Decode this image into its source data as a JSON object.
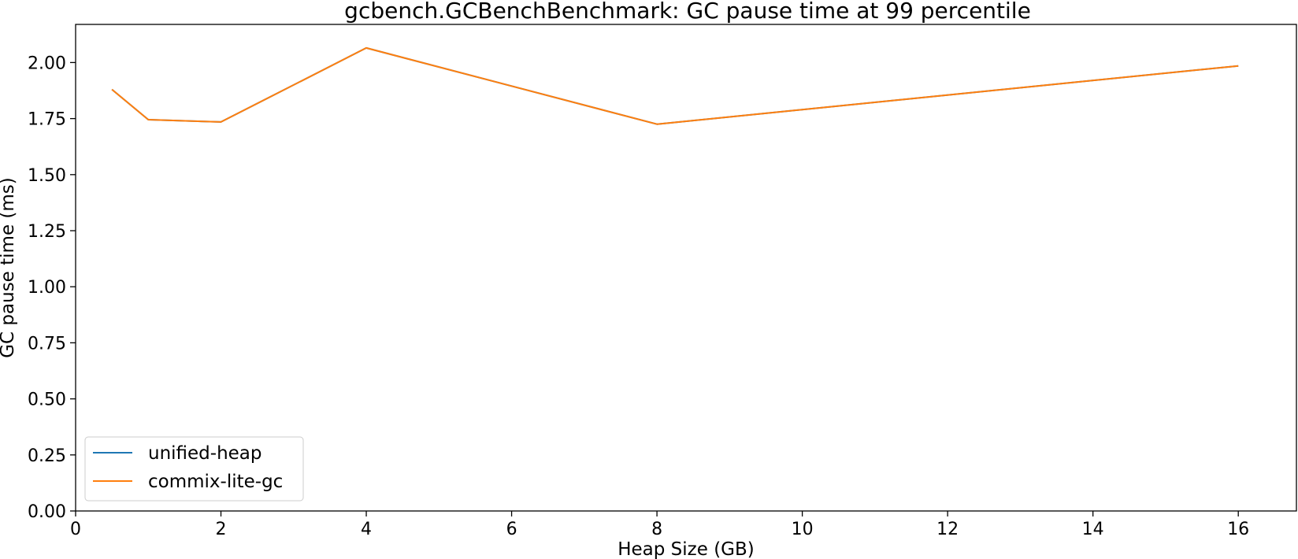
{
  "chart_data": {
    "type": "line",
    "title": "gcbench.GCBenchBenchmark: GC pause time at 99 percentile",
    "xlabel": "Heap Size (GB)",
    "ylabel": "GC pause time (ms)",
    "xlim": [
      0,
      16.8
    ],
    "ylim": [
      0,
      2.17
    ],
    "xticks": [
      0,
      2,
      4,
      6,
      8,
      10,
      12,
      14,
      16
    ],
    "yticks": [
      0.0,
      0.25,
      0.5,
      0.75,
      1.0,
      1.25,
      1.5,
      1.75,
      2.0
    ],
    "grid": false,
    "legend_position": "lower-left",
    "series": [
      {
        "name": "unified-heap",
        "color": "#1f77b4",
        "x": [
          0.5,
          1,
          2,
          4,
          8,
          16
        ],
        "y": [
          1.88,
          1.745,
          1.735,
          2.065,
          1.725,
          1.985
        ]
      },
      {
        "name": "commix-lite-gc",
        "color": "#ff7f0e",
        "x": [
          0.5,
          1,
          2,
          4,
          8,
          16
        ],
        "y": [
          1.88,
          1.745,
          1.735,
          2.065,
          1.725,
          1.985
        ]
      }
    ]
  }
}
